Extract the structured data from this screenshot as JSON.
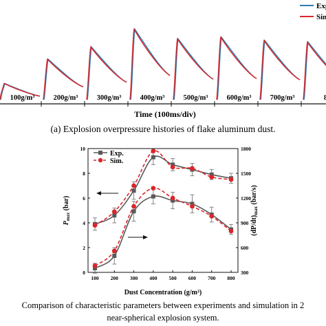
{
  "panel_a": {
    "legend": [
      "Exp.",
      "Sim."
    ],
    "xlabel": "Time (100ms/div)",
    "caption": "(a) Explosion overpressure histories of flake aluminum dust.",
    "segments": [
      "100g/m³",
      "200g/m³",
      "300g/m³",
      "400g/m³",
      "500g/m³",
      "600g/m³",
      "700g/m³",
      "8"
    ]
  },
  "panel_b_caption": {
    "line1": "Comparison of characteristic parameters between experiments and simulation in 2",
    "line2": "near-spherical explosion system."
  },
  "colors": {
    "exp_a": "#2b7fb0",
    "sim_a": "#d9262b",
    "exp_b": "#5a5a5a",
    "sim_b": "#d9262b"
  },
  "chart_data": [
    {
      "type": "line",
      "title": "",
      "xlabel": "Time (100ms/div)",
      "series": [
        {
          "name": "Exp."
        },
        {
          "name": "Sim."
        }
      ],
      "categories": [
        "100g/m³",
        "200g/m³",
        "300g/m³",
        "400g/m³",
        "500g/m³",
        "600g/m³",
        "700g/m³",
        "8"
      ],
      "peak_values_relative": [
        0.25,
        0.55,
        0.7,
        0.92,
        0.8,
        0.82,
        0.78,
        0.76
      ]
    },
    {
      "type": "line",
      "xlabel": "Dust Concentration (g/m³)",
      "ylabel_left": "Pmax (bar)",
      "ylabel_right": "(dP/dt)max (bar/s)",
      "x": [
        100,
        200,
        300,
        400,
        500,
        600,
        700,
        800
      ],
      "xlim": [
        100,
        800
      ],
      "ylim_left": [
        0,
        10
      ],
      "ylim_right": [
        300,
        1800
      ],
      "x_ticks": [
        "100",
        "200",
        "300",
        "400",
        "500",
        "600",
        "700",
        "800"
      ],
      "y_left_ticks": [
        "0",
        "2",
        "4",
        "6",
        "8",
        "10"
      ],
      "y_right_ticks": [
        "300",
        "600",
        "900",
        "1200",
        "1500",
        "1800"
      ],
      "legend": {
        "position": "top-left",
        "entries": [
          "Exp.",
          "Sim."
        ]
      },
      "series": [
        {
          "name": "Exp.",
          "axis": "left",
          "values": [
            3.9,
            4.6,
            6.6,
            9.3,
            8.7,
            8.3,
            7.9,
            7.6
          ],
          "errors": [
            0.5,
            0.6,
            0.7,
            0.6,
            0.5,
            0.5,
            0.4,
            0.4
          ]
        },
        {
          "name": "Sim.",
          "axis": "left",
          "values": [
            3.8,
            4.9,
            7.0,
            9.8,
            8.5,
            8.4,
            7.7,
            7.5
          ]
        },
        {
          "name": "Exp.",
          "axis": "right",
          "values": [
            350,
            500,
            1040,
            1220,
            1170,
            1130,
            1000,
            820
          ],
          "errors": [
            60,
            100,
            120,
            90,
            100,
            110,
            90,
            60
          ]
        },
        {
          "name": "Sim.",
          "axis": "right",
          "values": [
            380,
            560,
            1100,
            1320,
            1200,
            1100,
            980,
            800
          ]
        }
      ]
    }
  ]
}
